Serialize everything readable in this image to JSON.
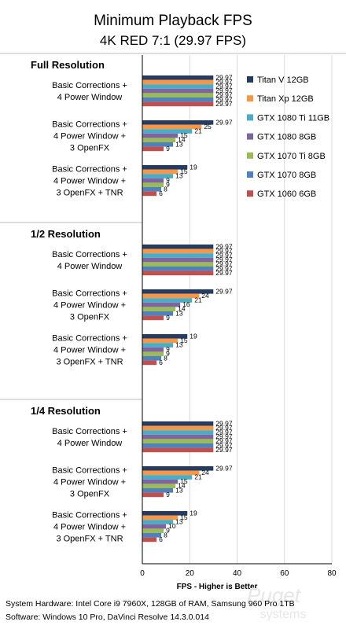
{
  "chart_data": {
    "type": "bar",
    "orientation": "horizontal",
    "title": "Minimum Playback FPS",
    "subtitle": "4K RED 7:1 (29.97 FPS)",
    "xlabel": "FPS - Higher is Better",
    "xlim": [
      0,
      80
    ],
    "xticks": [
      "0",
      "20",
      "40",
      "60",
      "80"
    ],
    "grid": true,
    "legend_position": "right",
    "series": [
      {
        "name": "Titan V 12GB",
        "color": "#253b60"
      },
      {
        "name": "Titan Xp 12GB",
        "color": "#f79646"
      },
      {
        "name": "GTX 1080 Ti 11GB",
        "color": "#4bacc6"
      },
      {
        "name": "GTX 1080 8GB",
        "color": "#8064a2"
      },
      {
        "name": "GTX 1070 Ti 8GB",
        "color": "#9bbb59"
      },
      {
        "name": "GTX 1070 8GB",
        "color": "#4f81bd"
      },
      {
        "name": "GTX 1060 6GB",
        "color": "#c0504d"
      }
    ],
    "groups": [
      {
        "title": "Full Resolution",
        "categories": [
          {
            "label": [
              "Basic Corrections +",
              "4 Power Window"
            ],
            "values": [
              29.97,
              29.97,
              29.97,
              29.97,
              29.97,
              29.97,
              29.97
            ],
            "value_labels": [
              "29.97",
              "29.97",
              "29.97",
              "29.97",
              "29.97",
              "29.97",
              "29.97"
            ]
          },
          {
            "label": [
              "Basic Corrections +",
              "4 Power Window +",
              "3 OpenFX"
            ],
            "values": [
              29.97,
              25,
              21,
              15,
              14,
              13,
              9
            ],
            "value_labels": [
              "29.97",
              "25",
              "21",
              "15",
              "14",
              "13",
              "9"
            ]
          },
          {
            "label": [
              "Basic Corrections +",
              "4 Power Window +",
              "3 OpenFX + TNR"
            ],
            "values": [
              19,
              15,
              13,
              9,
              9,
              8,
              6
            ],
            "value_labels": [
              "19",
              "15",
              "13",
              "9",
              "9",
              "8",
              "6"
            ]
          }
        ]
      },
      {
        "title": "1/2 Resolution",
        "categories": [
          {
            "label": [
              "Basic Corrections +",
              "4 Power Window"
            ],
            "values": [
              29.97,
              29.97,
              29.97,
              29.97,
              29.97,
              29.97,
              29.97
            ],
            "value_labels": [
              "29.97",
              "29.97",
              "29.97",
              "29.97",
              "29.97",
              "29.97",
              "29.97"
            ]
          },
          {
            "label": [
              "Basic Corrections +",
              "4 Power Window +",
              "3 OpenFX"
            ],
            "values": [
              29.97,
              24,
              21,
              16,
              14,
              13,
              9
            ],
            "value_labels": [
              "29.97",
              "24",
              "21",
              "16",
              "14",
              "13",
              "9"
            ]
          },
          {
            "label": [
              "Basic Corrections +",
              "4 Power Window +",
              "3 OpenFX + TNR"
            ],
            "values": [
              19,
              15,
              13,
              9,
              9,
              8,
              6
            ],
            "value_labels": [
              "19",
              "15",
              "13",
              "9",
              "9",
              "8",
              "6"
            ]
          }
        ]
      },
      {
        "title": "1/4 Resolution",
        "categories": [
          {
            "label": [
              "Basic Corrections +",
              "4 Power Window"
            ],
            "values": [
              29.97,
              29.97,
              29.97,
              29.97,
              29.97,
              29.97,
              29.97
            ],
            "value_labels": [
              "29.97",
              "29.97",
              "29.97",
              "29.97",
              "29.97",
              "29.97",
              "29.97"
            ]
          },
          {
            "label": [
              "Basic Corrections +",
              "4 Power Window +",
              "3 OpenFX"
            ],
            "values": [
              29.97,
              24,
              21,
              15,
              14,
              13,
              9
            ],
            "value_labels": [
              "29.97",
              "24",
              "21",
              "15",
              "14",
              "13",
              "9"
            ]
          },
          {
            "label": [
              "Basic Corrections +",
              "4 Power Window +",
              "3 OpenFX + TNR"
            ],
            "values": [
              19,
              15,
              13,
              10,
              9,
              8,
              6
            ],
            "value_labels": [
              "19",
              "15",
              "13",
              "10",
              "9",
              "8",
              "6"
            ]
          }
        ]
      }
    ]
  },
  "footer": {
    "hardware": "System Hardware: Intel Core i9 7960X,  128GB of RAM, Samsung 960 Pro 1TB",
    "software": "Software: Windows 10 Pro, DaVinci Resolve 14.3.0.014"
  },
  "watermark": {
    "line1": "Puget",
    "line2": "systems"
  }
}
